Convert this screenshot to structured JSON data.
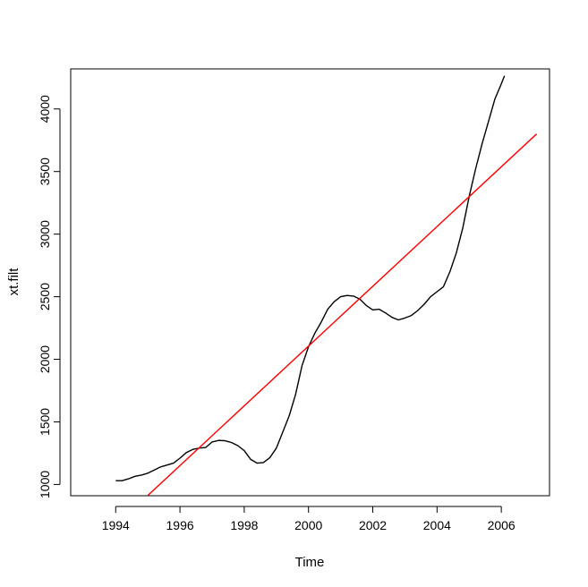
{
  "chart_data": {
    "type": "line",
    "title": "",
    "xlabel": "Time",
    "ylabel": "xt.filt",
    "xlim": [
      1992.6,
      2007.5
    ],
    "ylim": [
      910,
      4320
    ],
    "xticks": [
      1994,
      1996,
      1998,
      2000,
      2002,
      2004,
      2006
    ],
    "yticks": [
      1000,
      1500,
      2000,
      2500,
      3000,
      3500,
      4000
    ],
    "grid": false,
    "series": [
      {
        "color": "#000000",
        "points": [
          [
            1994.0,
            1030
          ],
          [
            1994.2,
            1030
          ],
          [
            1994.4,
            1045
          ],
          [
            1994.6,
            1065
          ],
          [
            1994.8,
            1075
          ],
          [
            1995.0,
            1090
          ],
          [
            1995.2,
            1115
          ],
          [
            1995.4,
            1140
          ],
          [
            1995.6,
            1155
          ],
          [
            1995.8,
            1170
          ],
          [
            1996.0,
            1210
          ],
          [
            1996.2,
            1255
          ],
          [
            1996.4,
            1280
          ],
          [
            1996.6,
            1290
          ],
          [
            1996.8,
            1295
          ],
          [
            1997.0,
            1340
          ],
          [
            1997.2,
            1352
          ],
          [
            1997.4,
            1350
          ],
          [
            1997.6,
            1335
          ],
          [
            1997.8,
            1310
          ],
          [
            1998.0,
            1270
          ],
          [
            1998.2,
            1200
          ],
          [
            1998.4,
            1170
          ],
          [
            1998.6,
            1175
          ],
          [
            1998.8,
            1215
          ],
          [
            1999.0,
            1290
          ],
          [
            1999.2,
            1420
          ],
          [
            1999.4,
            1550
          ],
          [
            1999.6,
            1720
          ],
          [
            1999.8,
            1950
          ],
          [
            2000.0,
            2100
          ],
          [
            2000.2,
            2210
          ],
          [
            2000.4,
            2300
          ],
          [
            2000.6,
            2400
          ],
          [
            2000.8,
            2460
          ],
          [
            2001.0,
            2500
          ],
          [
            2001.2,
            2510
          ],
          [
            2001.4,
            2505
          ],
          [
            2001.6,
            2480
          ],
          [
            2001.8,
            2430
          ],
          [
            2002.0,
            2395
          ],
          [
            2002.2,
            2400
          ],
          [
            2002.4,
            2370
          ],
          [
            2002.6,
            2335
          ],
          [
            2002.8,
            2315
          ],
          [
            2003.0,
            2330
          ],
          [
            2003.2,
            2350
          ],
          [
            2003.4,
            2390
          ],
          [
            2003.6,
            2440
          ],
          [
            2003.8,
            2500
          ],
          [
            2004.0,
            2540
          ],
          [
            2004.2,
            2580
          ],
          [
            2004.4,
            2700
          ],
          [
            2004.6,
            2850
          ],
          [
            2004.8,
            3050
          ],
          [
            2005.0,
            3300
          ],
          [
            2005.2,
            3520
          ],
          [
            2005.4,
            3720
          ],
          [
            2005.6,
            3900
          ],
          [
            2005.8,
            4080
          ],
          [
            2006.0,
            4200
          ],
          [
            2006.1,
            4265
          ]
        ]
      },
      {
        "color": "#ff0000",
        "points": [
          [
            1995.0,
            912
          ],
          [
            2007.1,
            3800
          ]
        ]
      }
    ]
  }
}
